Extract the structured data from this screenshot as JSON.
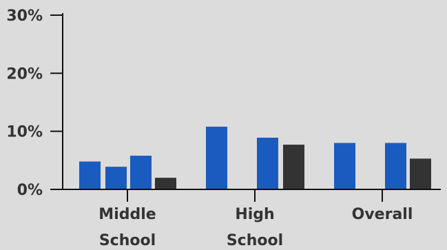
{
  "chart_data": {
    "type": "bar",
    "categories": [
      [
        "Middle",
        "School"
      ],
      [
        "High",
        "School"
      ],
      [
        "Overall"
      ]
    ],
    "series": [
      {
        "color": "#1a5bbf",
        "values": [
          4.8,
          10.8,
          8.0
        ]
      },
      {
        "color": "#1a5bbf",
        "values": [
          3.9,
          null,
          null
        ]
      },
      {
        "color": "#1a5bbf",
        "values": [
          5.8,
          8.9,
          8.0
        ]
      },
      {
        "color": "#333333",
        "values": [
          2.0,
          7.7,
          5.3
        ]
      }
    ],
    "yticks": [
      "0%",
      "10%",
      "20%",
      "30%"
    ],
    "ylim": [
      0,
      30
    ],
    "grid": false,
    "legend": "none"
  }
}
